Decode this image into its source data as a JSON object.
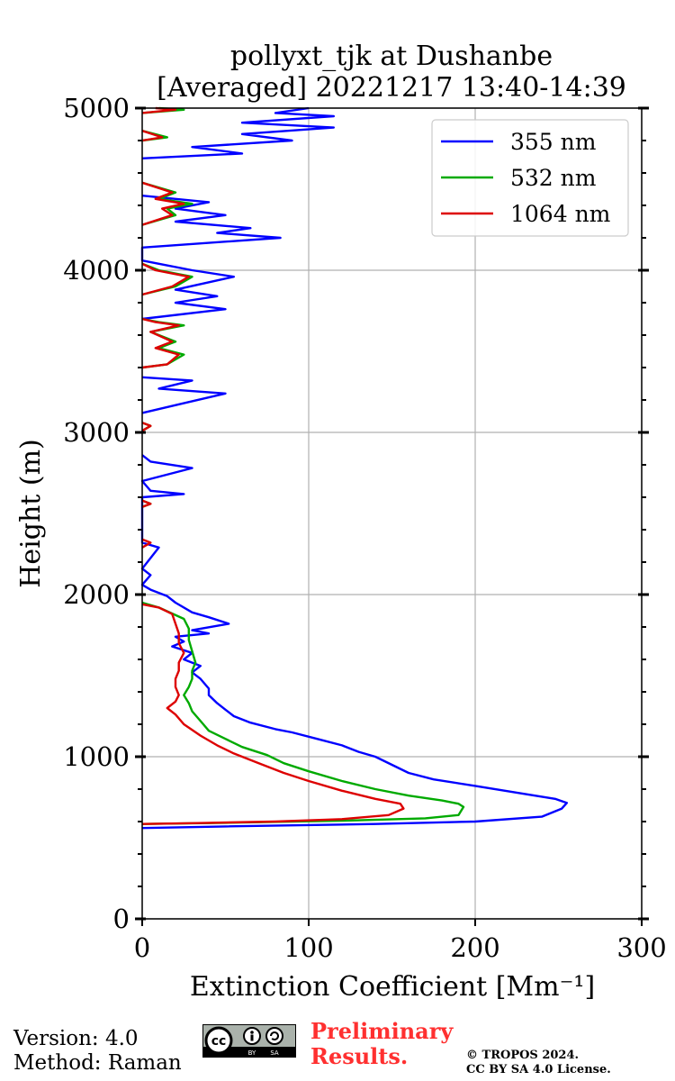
{
  "chart_data": {
    "type": "line",
    "title": "pollyxt_tjk at Dushanbe",
    "subtitle": "[Averaged] 20221217 13:40-14:39",
    "xlabel": "Extinction Coefficient [Mm⁻¹]",
    "ylabel": "Height (m)",
    "xlim": [
      0,
      300
    ],
    "ylim": [
      0,
      5000
    ],
    "xticks": [
      0,
      100,
      200,
      300
    ],
    "yticks": [
      0,
      1000,
      2000,
      3000,
      4000,
      5000
    ],
    "grid": true,
    "legend_position": "top-right",
    "series": [
      {
        "name": "355 nm",
        "color": "#0000ff",
        "points": [
          [
            0,
            560
          ],
          [
            50,
            570
          ],
          [
            140,
            585
          ],
          [
            200,
            600
          ],
          [
            240,
            630
          ],
          [
            252,
            680
          ],
          [
            255,
            715
          ],
          [
            248,
            740
          ],
          [
            230,
            770
          ],
          [
            200,
            820
          ],
          [
            175,
            860
          ],
          [
            160,
            900
          ],
          [
            150,
            950
          ],
          [
            140,
            1000
          ],
          [
            130,
            1030
          ],
          [
            120,
            1070
          ],
          [
            105,
            1110
          ],
          [
            90,
            1150
          ],
          [
            80,
            1170
          ],
          [
            65,
            1210
          ],
          [
            55,
            1250
          ],
          [
            50,
            1290
          ],
          [
            45,
            1330
          ],
          [
            40,
            1380
          ],
          [
            40,
            1420
          ],
          [
            35,
            1480
          ],
          [
            30,
            1520
          ],
          [
            35,
            1560
          ],
          [
            25,
            1600
          ],
          [
            30,
            1640
          ],
          [
            18,
            1680
          ],
          [
            25,
            1710
          ],
          [
            20,
            1740
          ],
          [
            40,
            1760
          ],
          [
            30,
            1780
          ],
          [
            52,
            1820
          ],
          [
            40,
            1860
          ],
          [
            30,
            1890
          ],
          [
            20,
            1950
          ],
          [
            15,
            1990
          ],
          [
            5,
            2030
          ],
          [
            0,
            2060
          ],
          [
            5,
            2120
          ],
          [
            0,
            2160
          ],
          [
            10,
            2290
          ],
          [
            0,
            2320
          ],
          [
            0,
            2600
          ],
          [
            25,
            2620
          ],
          [
            5,
            2640
          ],
          [
            0,
            2700
          ],
          [
            30,
            2780
          ],
          [
            5,
            2820
          ],
          [
            0,
            2860
          ],
          [
            null,
            null
          ],
          [
            0,
            3120
          ],
          [
            25,
            3180
          ],
          [
            50,
            3240
          ],
          [
            10,
            3270
          ],
          [
            30,
            3320
          ],
          [
            0,
            3340
          ],
          [
            null,
            null
          ],
          [
            0,
            3700
          ],
          [
            50,
            3760
          ],
          [
            20,
            3800
          ],
          [
            45,
            3840
          ],
          [
            20,
            3880
          ],
          [
            55,
            3960
          ],
          [
            30,
            4000
          ],
          [
            10,
            4040
          ],
          [
            0,
            4060
          ],
          [
            0,
            4140
          ],
          [
            83,
            4200
          ],
          [
            45,
            4230
          ],
          [
            65,
            4260
          ],
          [
            20,
            4300
          ],
          [
            50,
            4340
          ],
          [
            20,
            4380
          ],
          [
            40,
            4420
          ],
          [
            0,
            4460
          ],
          [
            null,
            null
          ],
          [
            0,
            4690
          ],
          [
            60,
            4720
          ],
          [
            30,
            4760
          ],
          [
            90,
            4800
          ],
          [
            60,
            4840
          ],
          [
            115,
            4880
          ],
          [
            60,
            4910
          ],
          [
            115,
            4950
          ],
          [
            80,
            4970
          ],
          [
            100,
            5000
          ]
        ]
      },
      {
        "name": "532 nm",
        "color": "#00aa00",
        "points": [
          [
            0,
            585
          ],
          [
            50,
            592
          ],
          [
            120,
            605
          ],
          [
            170,
            620
          ],
          [
            190,
            640
          ],
          [
            193,
            690
          ],
          [
            190,
            710
          ],
          [
            180,
            730
          ],
          [
            160,
            760
          ],
          [
            140,
            800
          ],
          [
            120,
            850
          ],
          [
            100,
            910
          ],
          [
            85,
            960
          ],
          [
            75,
            1010
          ],
          [
            60,
            1060
          ],
          [
            50,
            1110
          ],
          [
            40,
            1160
          ],
          [
            35,
            1220
          ],
          [
            30,
            1280
          ],
          [
            28,
            1330
          ],
          [
            25,
            1380
          ],
          [
            28,
            1430
          ],
          [
            30,
            1480
          ],
          [
            30,
            1530
          ],
          [
            32,
            1580
          ],
          [
            30,
            1650
          ],
          [
            28,
            1720
          ],
          [
            28,
            1790
          ],
          [
            25,
            1850
          ],
          [
            10,
            1920
          ],
          [
            0,
            1950
          ],
          [
            null,
            null
          ],
          [
            0,
            2540
          ],
          [
            5,
            2560
          ],
          [
            0,
            2580
          ],
          [
            null,
            null
          ],
          [
            0,
            3010
          ],
          [
            5,
            3040
          ],
          [
            0,
            3060
          ],
          [
            null,
            null
          ],
          [
            0,
            3400
          ],
          [
            15,
            3420
          ],
          [
            25,
            3480
          ],
          [
            10,
            3520
          ],
          [
            20,
            3560
          ],
          [
            5,
            3620
          ],
          [
            25,
            3660
          ],
          [
            10,
            3680
          ],
          [
            0,
            3700
          ],
          [
            null,
            null
          ],
          [
            0,
            3850
          ],
          [
            20,
            3900
          ],
          [
            30,
            3960
          ],
          [
            10,
            4000
          ],
          [
            0,
            4040
          ],
          [
            null,
            null
          ],
          [
            0,
            4280
          ],
          [
            20,
            4340
          ],
          [
            15,
            4380
          ],
          [
            30,
            4410
          ],
          [
            10,
            4440
          ],
          [
            20,
            4480
          ],
          [
            0,
            4540
          ],
          [
            null,
            null
          ],
          [
            0,
            4800
          ],
          [
            15,
            4820
          ],
          [
            0,
            4860
          ],
          [
            null,
            null
          ],
          [
            0,
            4970
          ],
          [
            25,
            4990
          ],
          [
            10,
            5000
          ]
        ]
      },
      {
        "name": "1064 nm",
        "color": "#dd0000",
        "points": [
          [
            0,
            585
          ],
          [
            30,
            590
          ],
          [
            80,
            600
          ],
          [
            120,
            615
          ],
          [
            148,
            640
          ],
          [
            157,
            680
          ],
          [
            155,
            710
          ],
          [
            140,
            740
          ],
          [
            120,
            790
          ],
          [
            100,
            850
          ],
          [
            85,
            900
          ],
          [
            70,
            960
          ],
          [
            55,
            1020
          ],
          [
            45,
            1070
          ],
          [
            35,
            1130
          ],
          [
            25,
            1200
          ],
          [
            20,
            1260
          ],
          [
            15,
            1300
          ],
          [
            20,
            1340
          ],
          [
            22,
            1380
          ],
          [
            20,
            1430
          ],
          [
            20,
            1480
          ],
          [
            22,
            1530
          ],
          [
            22,
            1580
          ],
          [
            25,
            1640
          ],
          [
            22,
            1700
          ],
          [
            22,
            1760
          ],
          [
            20,
            1820
          ],
          [
            18,
            1880
          ],
          [
            10,
            1920
          ],
          [
            0,
            1940
          ],
          [
            null,
            null
          ],
          [
            0,
            2540
          ],
          [
            5,
            2560
          ],
          [
            0,
            2580
          ],
          [
            null,
            null
          ],
          [
            0,
            2290
          ],
          [
            5,
            2320
          ],
          [
            0,
            2340
          ],
          [
            null,
            null
          ],
          [
            0,
            3010
          ],
          [
            5,
            3040
          ],
          [
            0,
            3060
          ],
          [
            null,
            null
          ],
          [
            0,
            3400
          ],
          [
            15,
            3420
          ],
          [
            22,
            3480
          ],
          [
            8,
            3520
          ],
          [
            18,
            3560
          ],
          [
            5,
            3620
          ],
          [
            22,
            3660
          ],
          [
            8,
            3680
          ],
          [
            0,
            3700
          ],
          [
            null,
            null
          ],
          [
            0,
            3850
          ],
          [
            18,
            3900
          ],
          [
            28,
            3960
          ],
          [
            8,
            4000
          ],
          [
            0,
            4040
          ],
          [
            null,
            null
          ],
          [
            0,
            4280
          ],
          [
            18,
            4340
          ],
          [
            12,
            4380
          ],
          [
            25,
            4410
          ],
          [
            8,
            4440
          ],
          [
            18,
            4480
          ],
          [
            0,
            4540
          ],
          [
            null,
            null
          ],
          [
            0,
            4800
          ],
          [
            12,
            4820
          ],
          [
            0,
            4860
          ],
          [
            null,
            null
          ],
          [
            0,
            4970
          ],
          [
            20,
            4990
          ],
          [
            8,
            5000
          ]
        ]
      }
    ]
  },
  "footer": {
    "version": "Version: 4.0",
    "method": "Method: Raman",
    "license_badge": "cc-by-sa-badge",
    "preliminary_line1": "Preliminary",
    "preliminary_line2": "Results.",
    "copyright_line1": "© TROPOS 2024.",
    "copyright_line2": "CC BY SA 4.0 License."
  }
}
